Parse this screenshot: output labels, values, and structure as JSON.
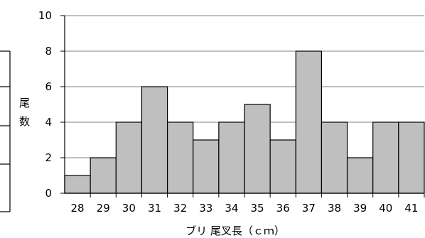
{
  "chart_data": {
    "type": "bar",
    "categories": [
      "28",
      "29",
      "30",
      "31",
      "32",
      "33",
      "34",
      "35",
      "36",
      "37",
      "38",
      "39",
      "40",
      "41"
    ],
    "values": [
      1,
      2,
      4,
      6,
      4,
      3,
      4,
      5,
      3,
      8,
      4,
      2,
      4,
      4
    ],
    "xlabel": "ブリ 尾叉長（ｃｍ）",
    "ylabel": [
      "尾",
      "数"
    ],
    "ylim": [
      0,
      10
    ],
    "yticks": [
      0,
      2,
      4,
      6,
      8,
      10
    ],
    "grid": true,
    "bar_color": "#bfbfbf",
    "bar_edge_color": "#000000",
    "grid_color": "#808080"
  }
}
